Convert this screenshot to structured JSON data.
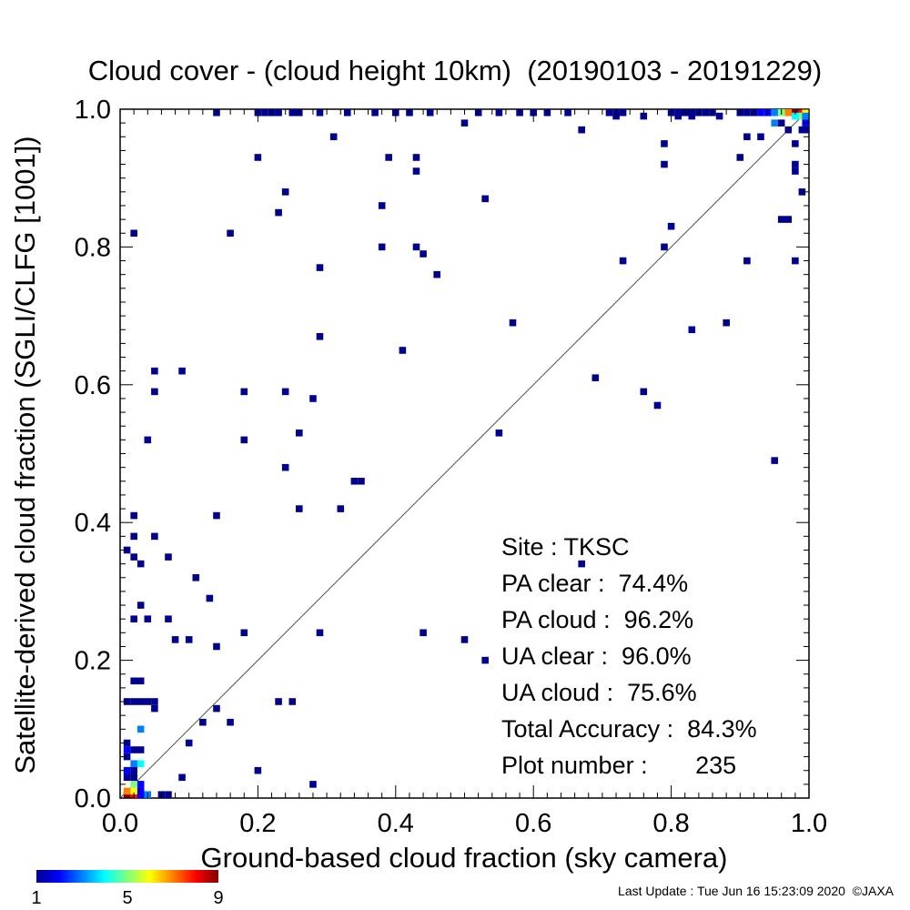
{
  "chart_data": {
    "type": "heatmap",
    "title": "Cloud cover - (cloud height 10km)  (20190103 - 20191229)",
    "xlabel": "Ground-based cloud fraction (sky camera)",
    "ylabel": "Satellite-derived cloud fraction (SGLI/CLFG [1001])",
    "xlim": [
      0,
      1
    ],
    "ylim": [
      0,
      1
    ],
    "xticks": [
      "0.0",
      "0.2",
      "0.4",
      "0.6",
      "0.8",
      "1.0"
    ],
    "yticks": [
      "0.0",
      "0.2",
      "0.4",
      "0.6",
      "0.8",
      "1.0"
    ],
    "diagonal_line": true,
    "colorbar": {
      "min": 1,
      "max": 9,
      "tick_labels": [
        "1",
        "5",
        "9"
      ]
    },
    "stats_lines": [
      "Site : TKSC",
      "PA clear :  74.4%",
      "PA cloud :  96.2%",
      "UA clear :  96.0%",
      "UA cloud :  75.6%",
      "Total Accuracy :  84.3%",
      "Plot number :       235"
    ],
    "points": [
      [
        0.01,
        0.0,
        9
      ],
      [
        0.02,
        0.0,
        8
      ],
      [
        0.03,
        0.0,
        2
      ],
      [
        0.04,
        0.0,
        3
      ],
      [
        0.06,
        0.0,
        1
      ],
      [
        0.07,
        0.0,
        1
      ],
      [
        0.01,
        0.01,
        7
      ],
      [
        0.02,
        0.01,
        6
      ],
      [
        0.03,
        0.01,
        2
      ],
      [
        0.02,
        0.02,
        5
      ],
      [
        0.03,
        0.02,
        2
      ],
      [
        0.01,
        0.03,
        1
      ],
      [
        0.02,
        0.03,
        1
      ],
      [
        0.01,
        0.04,
        2
      ],
      [
        0.02,
        0.04,
        1
      ],
      [
        0.03,
        0.05,
        4
      ],
      [
        0.02,
        0.05,
        3
      ],
      [
        0.01,
        0.06,
        1
      ],
      [
        0.01,
        0.07,
        2
      ],
      [
        0.02,
        0.07,
        1
      ],
      [
        0.03,
        0.07,
        1
      ],
      [
        0.01,
        0.08,
        1
      ],
      [
        0.03,
        0.1,
        3
      ],
      [
        0.01,
        0.14,
        1
      ],
      [
        0.02,
        0.14,
        1
      ],
      [
        0.03,
        0.14,
        1
      ],
      [
        0.04,
        0.14,
        1
      ],
      [
        0.05,
        0.14,
        1
      ],
      [
        0.02,
        0.17,
        1
      ],
      [
        0.03,
        0.17,
        1
      ],
      [
        0.05,
        0.13,
        1
      ],
      [
        0.02,
        0.26,
        1
      ],
      [
        0.03,
        0.28,
        1
      ],
      [
        0.04,
        0.26,
        1
      ],
      [
        0.07,
        0.26,
        1
      ],
      [
        0.01,
        0.36,
        1
      ],
      [
        0.02,
        0.35,
        1
      ],
      [
        0.03,
        0.34,
        1
      ],
      [
        0.02,
        0.38,
        1
      ],
      [
        0.05,
        0.38,
        1
      ],
      [
        0.07,
        0.35,
        1
      ],
      [
        0.02,
        0.41,
        1
      ],
      [
        0.04,
        0.52,
        1
      ],
      [
        0.05,
        0.59,
        1
      ],
      [
        0.05,
        0.62,
        1
      ],
      [
        0.09,
        0.62,
        1
      ],
      [
        0.02,
        0.82,
        1
      ],
      [
        0.09,
        0.03,
        1
      ],
      [
        0.1,
        0.08,
        1
      ],
      [
        0.12,
        0.11,
        1
      ],
      [
        0.14,
        0.13,
        1
      ],
      [
        0.16,
        0.11,
        1
      ],
      [
        0.08,
        0.23,
        1
      ],
      [
        0.1,
        0.23,
        1
      ],
      [
        0.14,
        0.22,
        1
      ],
      [
        0.18,
        0.24,
        1
      ],
      [
        0.11,
        0.32,
        1
      ],
      [
        0.13,
        0.29,
        1
      ],
      [
        0.14,
        0.41,
        1
      ],
      [
        0.18,
        0.52,
        1
      ],
      [
        0.18,
        0.59,
        1
      ],
      [
        0.16,
        0.82,
        1
      ],
      [
        0.2,
        0.04,
        1
      ],
      [
        0.23,
        0.14,
        1
      ],
      [
        0.25,
        0.14,
        1
      ],
      [
        0.28,
        0.02,
        1
      ],
      [
        0.29,
        0.24,
        1
      ],
      [
        0.26,
        0.42,
        1
      ],
      [
        0.24,
        0.48,
        1
      ],
      [
        0.26,
        0.53,
        1
      ],
      [
        0.24,
        0.59,
        1
      ],
      [
        0.28,
        0.58,
        1
      ],
      [
        0.29,
        0.67,
        1
      ],
      [
        0.29,
        0.77,
        1
      ],
      [
        0.23,
        0.85,
        1
      ],
      [
        0.24,
        0.88,
        1
      ],
      [
        0.2,
        0.93,
        1
      ],
      [
        0.31,
        0.96,
        1
      ],
      [
        0.32,
        0.42,
        1
      ],
      [
        0.34,
        0.46,
        1
      ],
      [
        0.35,
        0.46,
        1
      ],
      [
        0.41,
        0.65,
        1
      ],
      [
        0.38,
        0.8,
        1
      ],
      [
        0.38,
        0.86,
        1
      ],
      [
        0.39,
        0.93,
        1
      ],
      [
        0.43,
        0.8,
        1
      ],
      [
        0.44,
        0.79,
        1
      ],
      [
        0.43,
        0.91,
        1
      ],
      [
        0.43,
        0.93,
        1
      ],
      [
        0.44,
        0.24,
        1
      ],
      [
        0.46,
        0.76,
        1
      ],
      [
        0.5,
        0.23,
        1
      ],
      [
        0.53,
        0.2,
        1
      ],
      [
        0.55,
        0.53,
        1
      ],
      [
        0.57,
        0.69,
        1
      ],
      [
        0.53,
        0.87,
        1
      ],
      [
        0.5,
        0.98,
        1
      ],
      [
        0.67,
        0.34,
        1
      ],
      [
        0.69,
        0.61,
        1
      ],
      [
        0.67,
        0.97,
        1
      ],
      [
        0.73,
        0.78,
        1
      ],
      [
        0.76,
        0.59,
        1
      ],
      [
        0.78,
        0.57,
        1
      ],
      [
        0.79,
        0.8,
        1
      ],
      [
        0.8,
        0.83,
        1
      ],
      [
        0.79,
        0.92,
        1
      ],
      [
        0.79,
        0.95,
        1
      ],
      [
        0.76,
        0.99,
        1
      ],
      [
        0.83,
        0.68,
        1
      ],
      [
        0.88,
        0.69,
        1
      ],
      [
        0.91,
        0.78,
        1
      ],
      [
        0.9,
        0.93,
        1
      ],
      [
        0.91,
        0.96,
        1
      ],
      [
        0.93,
        0.96,
        1
      ],
      [
        0.95,
        0.49,
        1
      ],
      [
        0.96,
        0.84,
        1
      ],
      [
        0.97,
        0.84,
        1
      ],
      [
        0.98,
        0.78,
        1
      ],
      [
        0.98,
        0.91,
        1
      ],
      [
        0.98,
        0.92,
        1
      ],
      [
        0.98,
        0.95,
        1
      ],
      [
        0.99,
        0.88,
        1
      ],
      [
        0.96,
        0.98,
        1
      ],
      [
        0.97,
        0.97,
        1
      ],
      [
        0.95,
        0.98,
        3
      ],
      [
        0.14,
        1.0,
        1
      ],
      [
        0.2,
        1.0,
        1
      ],
      [
        0.21,
        1.0,
        1
      ],
      [
        0.22,
        1.0,
        1
      ],
      [
        0.23,
        1.0,
        1
      ],
      [
        0.25,
        1.0,
        1
      ],
      [
        0.26,
        1.0,
        1
      ],
      [
        0.29,
        1.0,
        1
      ],
      [
        0.33,
        1.0,
        1
      ],
      [
        0.37,
        1.0,
        1
      ],
      [
        0.4,
        1.0,
        1
      ],
      [
        0.42,
        1.0,
        1
      ],
      [
        0.45,
        1.0,
        1
      ],
      [
        0.52,
        1.0,
        1
      ],
      [
        0.55,
        1.0,
        1
      ],
      [
        0.58,
        1.0,
        1
      ],
      [
        0.6,
        1.0,
        1
      ],
      [
        0.62,
        1.0,
        1
      ],
      [
        0.65,
        1.0,
        1
      ],
      [
        0.71,
        1.0,
        1
      ],
      [
        0.72,
        1.0,
        1
      ],
      [
        0.73,
        1.0,
        1
      ],
      [
        0.8,
        1.0,
        1
      ],
      [
        0.81,
        1.0,
        1
      ],
      [
        0.82,
        1.0,
        1
      ],
      [
        0.83,
        1.0,
        1
      ],
      [
        0.84,
        1.0,
        1
      ],
      [
        0.85,
        1.0,
        1
      ],
      [
        0.86,
        1.0,
        1
      ],
      [
        0.9,
        1.0,
        1
      ],
      [
        0.91,
        1.0,
        1
      ],
      [
        0.92,
        1.0,
        1
      ],
      [
        0.93,
        1.0,
        2
      ],
      [
        0.94,
        1.0,
        2
      ],
      [
        0.95,
        1.0,
        3
      ],
      [
        0.96,
        1.0,
        5
      ],
      [
        0.97,
        1.0,
        7
      ],
      [
        0.98,
        1.0,
        9
      ],
      [
        0.99,
        1.0,
        8
      ],
      [
        1.0,
        1.0,
        6
      ],
      [
        0.99,
        0.99,
        5
      ],
      [
        1.0,
        0.99,
        3
      ],
      [
        0.98,
        0.99,
        4
      ],
      [
        1.0,
        0.98,
        2
      ],
      [
        1.0,
        0.97,
        1
      ],
      [
        0.99,
        0.97,
        1
      ],
      [
        0.72,
        0.99,
        1
      ],
      [
        0.87,
        0.99,
        1
      ],
      [
        0.81,
        0.99,
        1
      ],
      [
        0.83,
        0.99,
        1
      ]
    ]
  },
  "footer": {
    "last_update": "Last Update : Tue Jun 16 15:23:09 2020  ©JAXA"
  }
}
